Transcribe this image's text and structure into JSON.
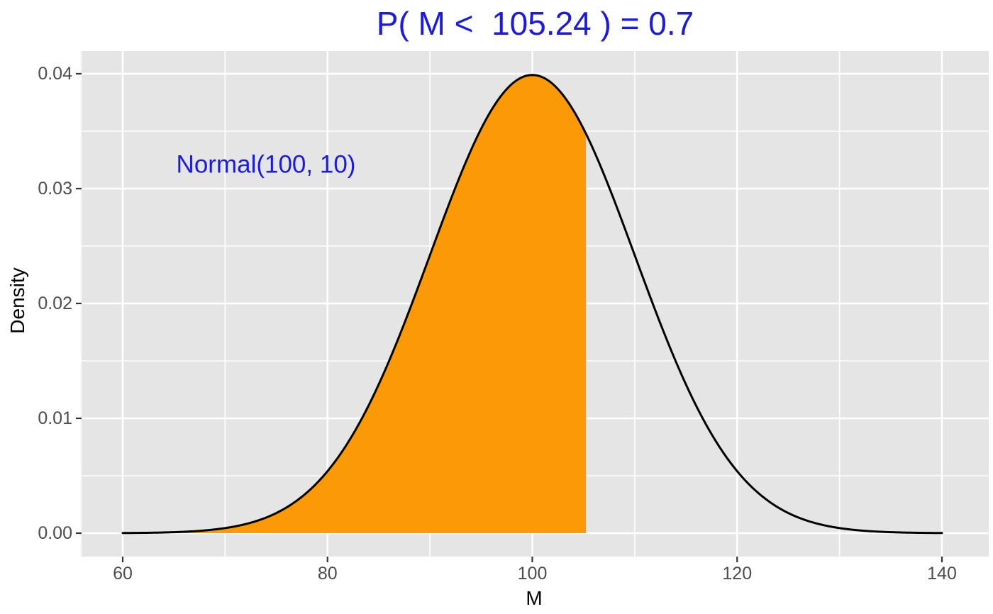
{
  "chart_data": {
    "type": "area",
    "title": "P( M <  105.24 ) = 0.7",
    "annotation": "Normal(100, 10)",
    "xlabel": "M",
    "ylabel": "Density",
    "distribution": "normal",
    "mean": 100,
    "sd": 10,
    "cutoff": 105.24,
    "probability": 0.7,
    "peak_density": 0.0399,
    "curve_x_range": [
      60,
      140
    ],
    "x_axis_range": [
      56,
      144.6
    ],
    "y_axis_range": [
      -0.002,
      0.042
    ],
    "x_ticks": [
      60,
      80,
      100,
      120,
      140
    ],
    "x_tick_labels": [
      "60",
      "80",
      "100",
      "120",
      "140"
    ],
    "x_minor_ticks": [
      70,
      90,
      110,
      130
    ],
    "y_ticks": [
      0,
      0.01,
      0.02,
      0.03,
      0.04
    ],
    "y_tick_labels": [
      "0.00",
      "0.01",
      "0.02",
      "0.03",
      "0.04"
    ],
    "y_minor_ticks": [
      0.005,
      0.015,
      0.025,
      0.035
    ],
    "grid": true,
    "legend": "none",
    "colors": {
      "fill": "#FB9A06",
      "curve": "#000000",
      "panel_background": "#E5E5E5",
      "gridline": "#FFFFFF",
      "title_text": "#1A1AE8",
      "annotation_text": "#1A1AE8",
      "tick_label": "#4D4D4D",
      "tick_mark": "#333333",
      "axis_title": "#000000"
    }
  }
}
